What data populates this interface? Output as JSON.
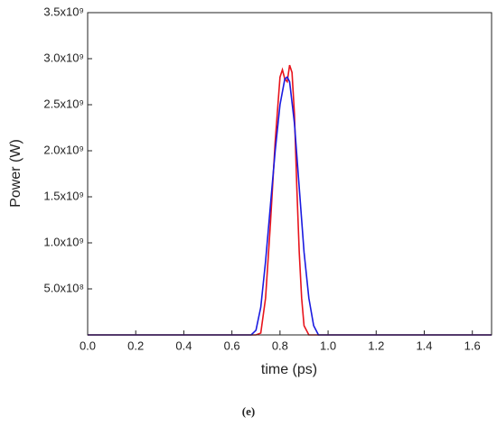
{
  "chart_data": {
    "type": "line",
    "x_label": "time (ps)",
    "y_label": "Power (W)",
    "caption": "(e)",
    "xlim": [
      0,
      1.68
    ],
    "ylim": [
      0,
      3500000000
    ],
    "xticks": [
      {
        "value": 0,
        "label": "0.0"
      },
      0.2,
      0.4,
      0.6,
      0.8,
      {
        "value": 1,
        "label": "1.0"
      },
      1.2,
      1.4,
      1.6
    ],
    "yticks": [
      {
        "value": 500000000,
        "label": "5.0x10⁸"
      },
      {
        "value": 1000000000,
        "label": "1.0x10⁹"
      },
      {
        "value": 1500000000,
        "label": "1.5x10⁹"
      },
      {
        "value": 2000000000,
        "label": "2.0x10⁹"
      },
      {
        "value": 2500000000,
        "label": "2.5x10⁹"
      },
      {
        "value": 3000000000,
        "label": "3.0x10⁹"
      },
      {
        "value": 3500000000,
        "label": "3.5x10⁹"
      }
    ],
    "series": [
      {
        "color": "#e8141c",
        "x": [
          0,
          0.7,
          0.72,
          0.74,
          0.76,
          0.78,
          0.8,
          0.81,
          0.82,
          0.83,
          0.84,
          0.85,
          0.86,
          0.87,
          0.88,
          0.89,
          0.9,
          0.92,
          1.68
        ],
        "values": [
          0,
          0,
          20000000,
          400000000,
          1200000000,
          2100000000,
          2800000000,
          2880000000,
          2780000000,
          2750000000,
          2930000000,
          2850000000,
          2400000000,
          1600000000,
          900000000,
          400000000,
          100000000,
          0,
          0
        ]
      },
      {
        "color": "#1a1ae0",
        "x": [
          0,
          0.68,
          0.7,
          0.72,
          0.74,
          0.76,
          0.78,
          0.8,
          0.82,
          0.83,
          0.84,
          0.86,
          0.88,
          0.9,
          0.92,
          0.94,
          0.96,
          1.68
        ],
        "values": [
          0,
          0,
          50000000,
          300000000,
          800000000,
          1400000000,
          2000000000,
          2500000000,
          2780000000,
          2800000000,
          2750000000,
          2300000000,
          1600000000,
          900000000,
          400000000,
          100000000,
          0,
          0
        ]
      }
    ]
  }
}
